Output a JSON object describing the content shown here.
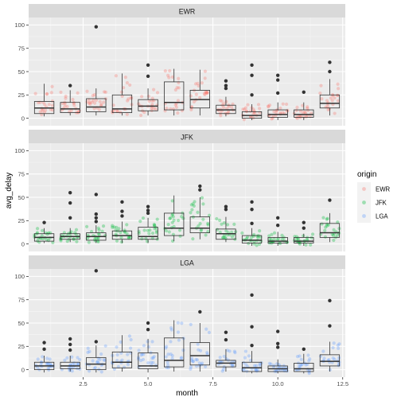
{
  "chart_data": {
    "type": "box",
    "xlabel": "month",
    "ylabel": "avg_delay",
    "xlim": [
      0.4,
      12.6
    ],
    "ylim": [
      -8,
      108
    ],
    "x_ticks": [
      2.5,
      5.0,
      7.5,
      10.0,
      12.5
    ],
    "x_tick_labels": [
      "2.5",
      "5.0",
      "7.5",
      "10.0",
      "12.5"
    ],
    "y_ticks": [
      0,
      25,
      50,
      75,
      100
    ],
    "y_tick_labels": [
      "0",
      "25",
      "50",
      "75",
      "100"
    ],
    "legend": {
      "title": "origin",
      "position": "right",
      "entries": [
        {
          "label": "EWR",
          "color": "#F8766D"
        },
        {
          "label": "JFK",
          "color": "#00BA38"
        },
        {
          "label": "LGA",
          "color": "#619CFF"
        }
      ]
    },
    "facets": [
      {
        "label": "EWR",
        "color": "#F8766D",
        "boxes": [
          {
            "month": 1,
            "q1": 5,
            "median": 11,
            "q3": 18,
            "lower": 2,
            "upper": 37,
            "outliers": []
          },
          {
            "month": 2,
            "q1": 6,
            "median": 10,
            "q3": 17,
            "lower": 3,
            "upper": 30,
            "outliers": [
              35
            ]
          },
          {
            "month": 3,
            "q1": 7,
            "median": 12,
            "q3": 21,
            "lower": 3,
            "upper": 32,
            "outliers": [
              98
            ]
          },
          {
            "month": 4,
            "q1": 6,
            "median": 10,
            "q3": 25,
            "lower": 3,
            "upper": 48,
            "outliers": []
          },
          {
            "month": 5,
            "q1": 8,
            "median": 13,
            "q3": 20,
            "lower": 3,
            "upper": 32,
            "outliers": [
              45,
              57
            ]
          },
          {
            "month": 6,
            "q1": 9,
            "median": 17,
            "q3": 39,
            "lower": 3,
            "upper": 53,
            "outliers": []
          },
          {
            "month": 7,
            "q1": 11,
            "median": 20,
            "q3": 30,
            "lower": 3,
            "upper": 52,
            "outliers": []
          },
          {
            "month": 8,
            "q1": 5,
            "median": 9,
            "q3": 14,
            "lower": 2,
            "upper": 23,
            "outliers": [
              32,
              35,
              40
            ]
          },
          {
            "month": 9,
            "q1": 0,
            "median": 3,
            "q3": 7,
            "lower": -2,
            "upper": 15,
            "outliers": [
              25,
              46,
              57
            ]
          },
          {
            "month": 10,
            "q1": 1,
            "median": 4,
            "q3": 9,
            "lower": -2,
            "upper": 17,
            "outliers": [
              27,
              41,
              46
            ]
          },
          {
            "month": 11,
            "q1": 1,
            "median": 4,
            "q3": 9,
            "lower": -2,
            "upper": 17,
            "outliers": [
              28
            ]
          },
          {
            "month": 12,
            "q1": 11,
            "median": 16,
            "q3": 25,
            "lower": 3,
            "upper": 42,
            "outliers": [
              50,
              60
            ]
          }
        ]
      },
      {
        "label": "JFK",
        "color": "#00BA38",
        "boxes": [
          {
            "month": 1,
            "q1": 3,
            "median": 7,
            "q3": 11,
            "lower": 1,
            "upper": 17,
            "outliers": [
              23
            ]
          },
          {
            "month": 2,
            "q1": 5,
            "median": 8,
            "q3": 11,
            "lower": 2,
            "upper": 17,
            "outliers": [
              28,
              44,
              55
            ]
          },
          {
            "month": 3,
            "q1": 4,
            "median": 8,
            "q3": 12,
            "lower": 1,
            "upper": 20,
            "outliers": [
              24,
              28,
              32,
              53
            ]
          },
          {
            "month": 4,
            "q1": 5,
            "median": 9,
            "q3": 14,
            "lower": 1,
            "upper": 24,
            "outliers": [
              30,
              35,
              45
            ]
          },
          {
            "month": 5,
            "q1": 5,
            "median": 8,
            "q3": 18,
            "lower": 1,
            "upper": 28,
            "outliers": [
              33,
              36,
              40
            ]
          },
          {
            "month": 6,
            "q1": 9,
            "median": 17,
            "q3": 33,
            "lower": 3,
            "upper": 52,
            "outliers": []
          },
          {
            "month": 7,
            "q1": 12,
            "median": 17,
            "q3": 29,
            "lower": 5,
            "upper": 50,
            "outliers": [
              58,
              62
            ]
          },
          {
            "month": 8,
            "q1": 5,
            "median": 11,
            "q3": 16,
            "lower": 2,
            "upper": 29,
            "outliers": [
              37,
              40
            ]
          },
          {
            "month": 9,
            "q1": 1,
            "median": 4,
            "q3": 9,
            "lower": -2,
            "upper": 17,
            "outliers": [
              22,
              37,
              45
            ]
          },
          {
            "month": 10,
            "q1": 1,
            "median": 3,
            "q3": 7,
            "lower": -2,
            "upper": 13,
            "outliers": [
              20,
              28
            ]
          },
          {
            "month": 11,
            "q1": 1,
            "median": 3,
            "q3": 7,
            "lower": -2,
            "upper": 11,
            "outliers": [
              17,
              23
            ]
          },
          {
            "month": 12,
            "q1": 7,
            "median": 12,
            "q3": 22,
            "lower": 2,
            "upper": 33,
            "outliers": [
              47
            ]
          }
        ]
      },
      {
        "label": "LGA",
        "color": "#619CFF",
        "boxes": [
          {
            "month": 1,
            "q1": 0,
            "median": 4,
            "q3": 8,
            "lower": -3,
            "upper": 15,
            "outliers": [
              22,
              29
            ]
          },
          {
            "month": 2,
            "q1": 1,
            "median": 4,
            "q3": 8,
            "lower": -2,
            "upper": 15,
            "outliers": [
              21,
              27,
              33
            ]
          },
          {
            "month": 3,
            "q1": 0,
            "median": 6,
            "q3": 13,
            "lower": -3,
            "upper": 26,
            "outliers": [
              30,
              106
            ]
          },
          {
            "month": 4,
            "q1": 2,
            "median": 8,
            "q3": 19,
            "lower": -2,
            "upper": 37,
            "outliers": []
          },
          {
            "month": 5,
            "q1": 1,
            "median": 4,
            "q3": 18,
            "lower": -3,
            "upper": 33,
            "outliers": [
              43,
              50
            ]
          },
          {
            "month": 6,
            "q1": 3,
            "median": 10,
            "q3": 34,
            "lower": -2,
            "upper": 53,
            "outliers": []
          },
          {
            "month": 7,
            "q1": 5,
            "median": 15,
            "q3": 29,
            "lower": -2,
            "upper": 50,
            "outliers": [
              62
            ]
          },
          {
            "month": 8,
            "q1": 3,
            "median": 7,
            "q3": 10,
            "lower": -2,
            "upper": 22,
            "outliers": [
              32,
              40
            ]
          },
          {
            "month": 9,
            "q1": -2,
            "median": 2,
            "q3": 8,
            "lower": -4,
            "upper": 20,
            "outliers": [
              26,
              46,
              80
            ]
          },
          {
            "month": 10,
            "q1": -2,
            "median": 1,
            "q3": 4,
            "lower": -4,
            "upper": 11,
            "outliers": [
              24,
              28,
              41
            ]
          },
          {
            "month": 11,
            "q1": -2,
            "median": 1,
            "q3": 7,
            "lower": -4,
            "upper": 17,
            "outliers": [
              22
            ]
          },
          {
            "month": 12,
            "q1": 4,
            "median": 9,
            "q3": 16,
            "lower": -2,
            "upper": 30,
            "outliers": [
              47,
              74
            ]
          }
        ]
      }
    ]
  }
}
